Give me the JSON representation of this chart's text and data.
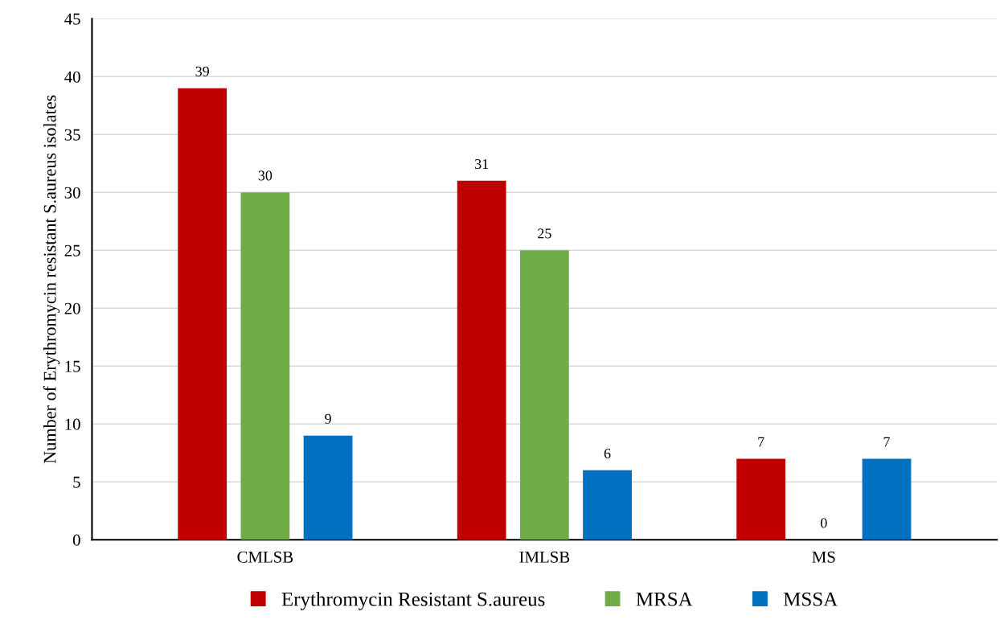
{
  "chart_data": {
    "type": "bar",
    "ylabel": "Number of Erythromycin resistant S.aureus isolates",
    "categories": [
      "CMLSB",
      "IMLSB",
      "MS"
    ],
    "series": [
      {
        "name": "Erythromycin Resistant S.aureus",
        "color": "#c00000",
        "values": [
          39,
          31,
          7
        ]
      },
      {
        "name": "MRSA",
        "color": "#70ad47",
        "values": [
          30,
          25,
          0
        ]
      },
      {
        "name": "MSSA",
        "color": "#0070c0",
        "values": [
          9,
          6,
          7
        ]
      }
    ],
    "ylim": [
      0,
      45
    ],
    "yticks": [
      0,
      5,
      10,
      15,
      20,
      25,
      30,
      35,
      40,
      45
    ],
    "grid": "y",
    "legend": "bottom",
    "data_labels": true
  }
}
